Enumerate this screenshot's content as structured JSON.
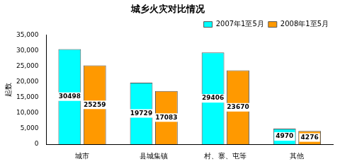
{
  "chart_data": {
    "type": "bar",
    "title": "城乡火灾对比情况",
    "y_label": "起数",
    "categories": [
      "城市",
      "县城集镇",
      "村、寨、屯等",
      "其他"
    ],
    "series": [
      {
        "name": "2007年1至5月",
        "color": "#00ffff",
        "values": [
          30498,
          19729,
          29406,
          4970
        ]
      },
      {
        "name": "2008年1至5月",
        "color": "#ff9900",
        "values": [
          25259,
          17083,
          23670,
          4276
        ]
      }
    ],
    "ylim": [
      0,
      35000
    ],
    "yticks": [
      0,
      5000,
      10000,
      15000,
      20000,
      25000,
      30000,
      35000
    ],
    "grid": false,
    "legend": "upper right",
    "data_labels": true
  }
}
